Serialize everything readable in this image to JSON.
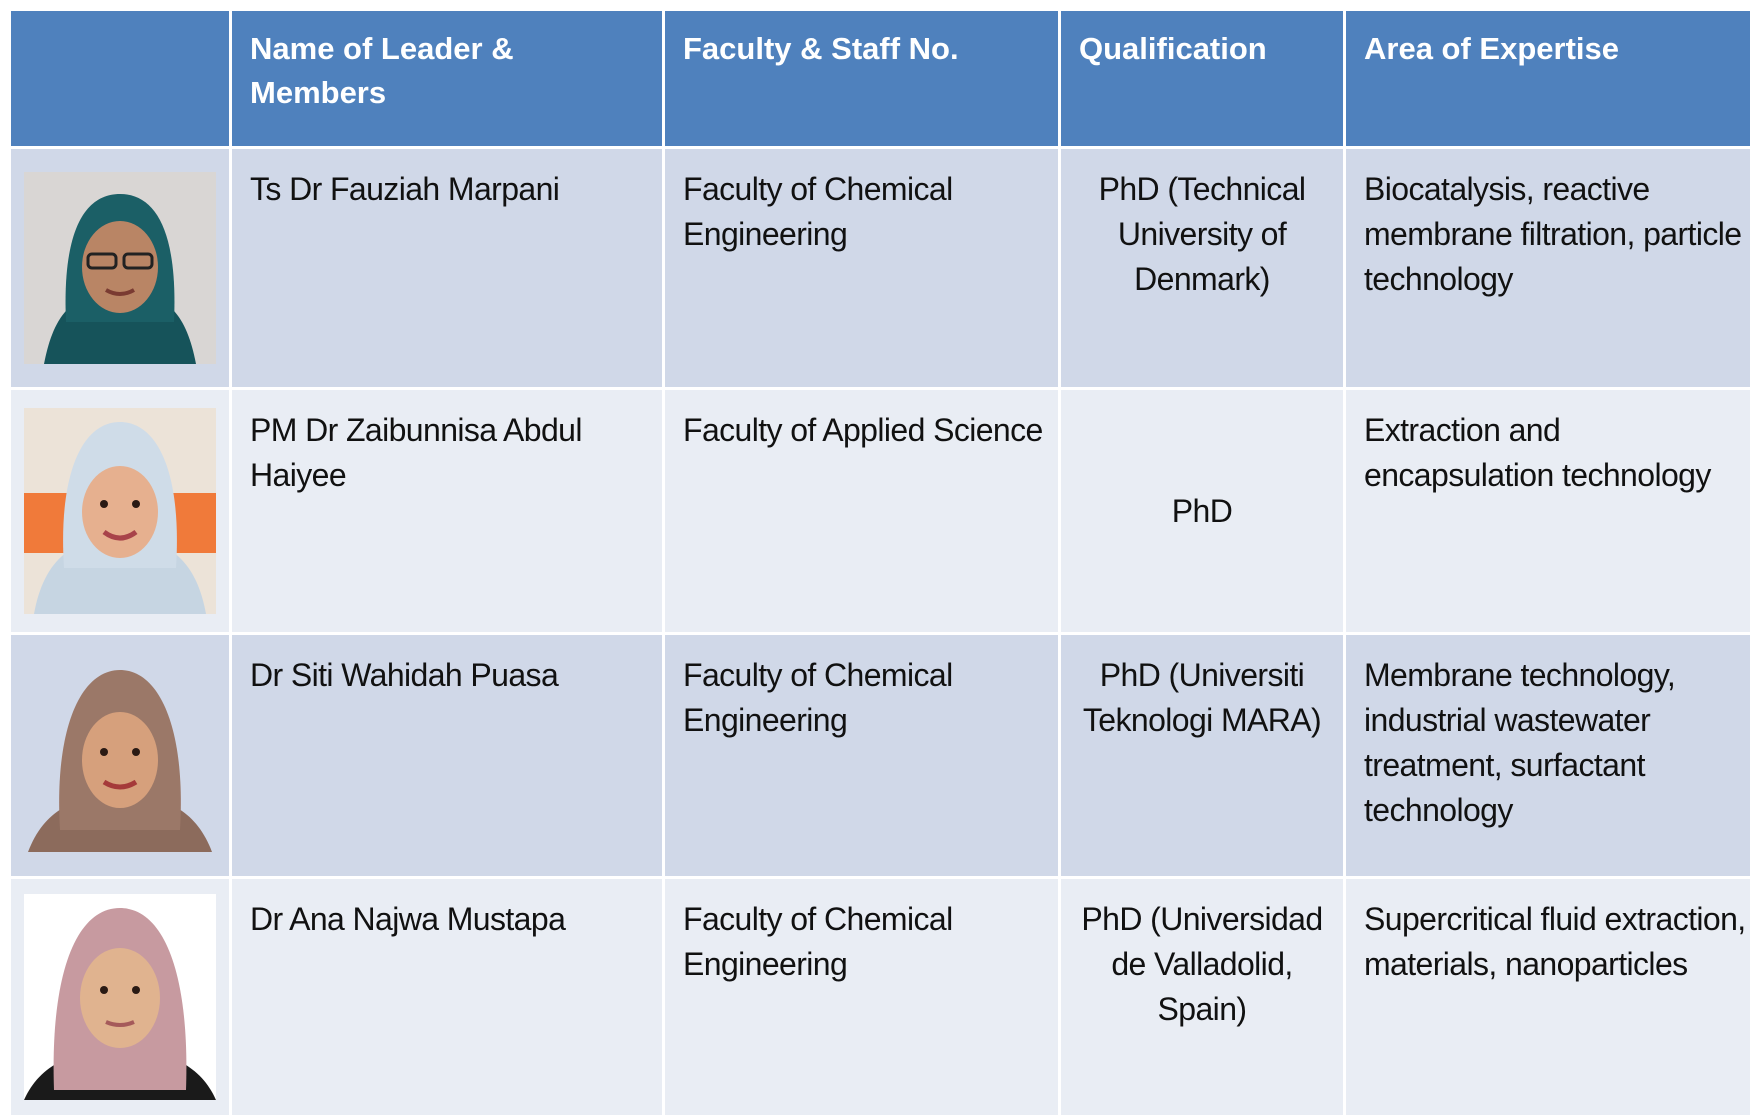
{
  "table": {
    "headers": [
      "Name of Leader & Members",
      "Faculty & Staff No.",
      "Qualification",
      "Area of Expertise"
    ],
    "rows": [
      [
        "Ts Dr Fauziah Marpani",
        "Faculty of Chemical Engineering",
        "PhD (Technical University of Denmark)",
        "Biocatalysis, reactive membrane filtration, particle technology"
      ],
      [
        "PM Dr Zaibunnisa Abdul Haiyee",
        "Faculty of Applied Science",
        "PhD",
        "Extraction and encapsulation technology"
      ],
      [
        "Dr Siti Wahidah Puasa",
        "Faculty of Chemical Engineering",
        "PhD (Universiti Teknologi MARA)",
        "Membrane technology, industrial wastewater treatment, surfactant technology"
      ],
      [
        "Dr Ana Najwa Mustapa",
        "Faculty of Chemical Engineering",
        "PhD (Universidad de Valladolid, Spain)",
        "Supercritical fluid extraction, materials, nanoparticles"
      ]
    ]
  }
}
